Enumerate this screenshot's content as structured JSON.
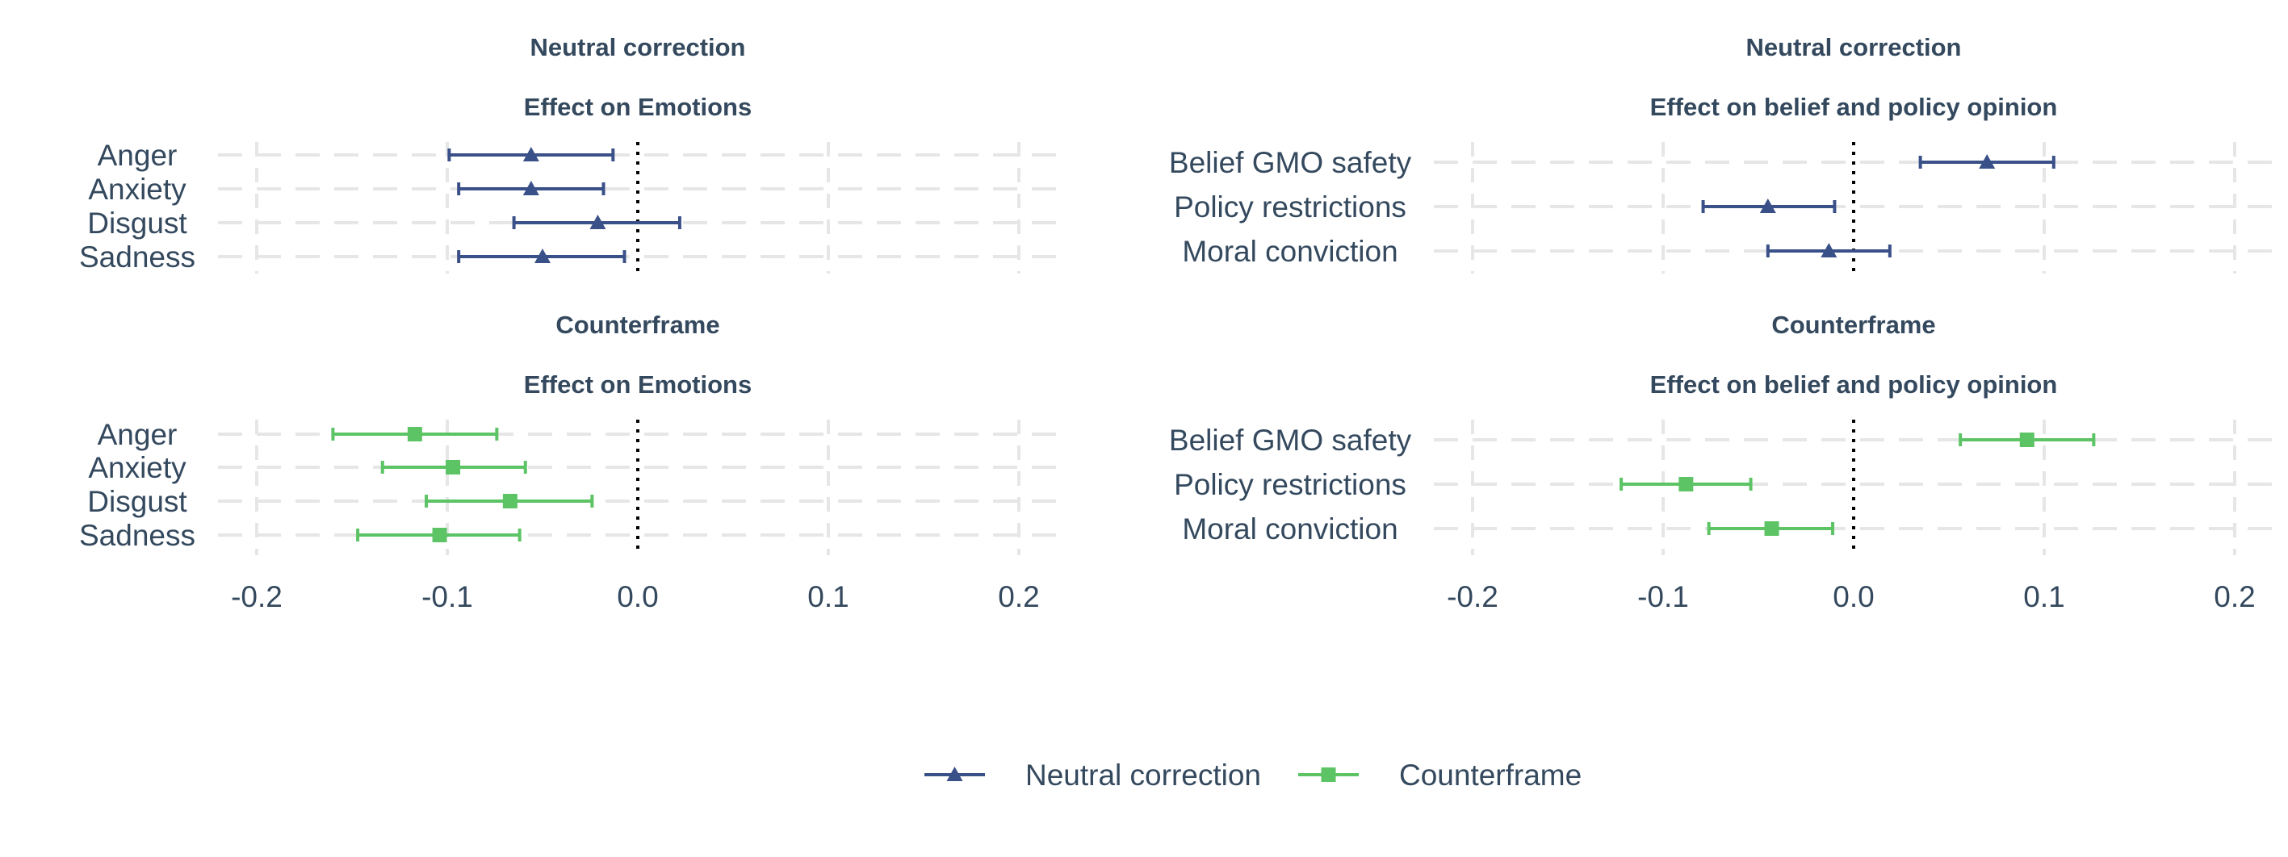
{
  "colors": {
    "neutral": "#3a5088",
    "counterframe": "#5cc464",
    "text": "#34495e",
    "grid": "#e6e6e6",
    "zero_line": "#000000"
  },
  "legend": {
    "position": "bottom",
    "items": [
      {
        "label": "Neutral correction",
        "marker": "triangle",
        "color_key": "neutral"
      },
      {
        "label": "Counterframe",
        "marker": "square",
        "color_key": "counterframe"
      }
    ]
  },
  "chart_data": [
    {
      "type": "forest",
      "title": "Neutral correction",
      "subtitle": "Effect on Emotions",
      "series_name": "Neutral correction",
      "marker": "triangle",
      "color_key": "neutral",
      "xlim": [
        -0.22,
        0.22
      ],
      "x_ticks": [
        -0.2,
        -0.1,
        0.0,
        0.1,
        0.2
      ],
      "reference_line": 0,
      "grid": true,
      "categories": [
        "Anger",
        "Anxiety",
        "Disgust",
        "Sadness"
      ],
      "estimates": [
        -0.056,
        -0.056,
        -0.021,
        -0.05
      ],
      "ci_low": [
        -0.099,
        -0.094,
        -0.065,
        -0.094
      ],
      "ci_high": [
        -0.013,
        -0.018,
        0.022,
        -0.007
      ]
    },
    {
      "type": "forest",
      "title": "Neutral correction",
      "subtitle": "Effect on belief and policy opinion",
      "series_name": "Neutral correction",
      "marker": "triangle",
      "color_key": "neutral",
      "xlim": [
        -0.22,
        0.22
      ],
      "x_ticks": [
        -0.2,
        -0.1,
        0.0,
        0.1,
        0.2
      ],
      "reference_line": 0,
      "grid": true,
      "categories": [
        "Belief GMO safety",
        "Policy restrictions",
        "Moral conviction"
      ],
      "estimates": [
        0.07,
        -0.045,
        -0.013
      ],
      "ci_low": [
        0.035,
        -0.079,
        -0.045
      ],
      "ci_high": [
        0.105,
        -0.01,
        0.019
      ]
    },
    {
      "type": "forest",
      "title": "Counterframe",
      "subtitle": "Effect on Emotions",
      "series_name": "Counterframe",
      "marker": "square",
      "color_key": "counterframe",
      "xlim": [
        -0.22,
        0.22
      ],
      "x_ticks": [
        -0.2,
        -0.1,
        0.0,
        0.1,
        0.2
      ],
      "reference_line": 0,
      "grid": true,
      "categories": [
        "Anger",
        "Anxiety",
        "Disgust",
        "Sadness"
      ],
      "estimates": [
        -0.117,
        -0.097,
        -0.067,
        -0.104
      ],
      "ci_low": [
        -0.16,
        -0.134,
        -0.111,
        -0.147
      ],
      "ci_high": [
        -0.074,
        -0.059,
        -0.024,
        -0.062
      ]
    },
    {
      "type": "forest",
      "title": "Counterframe",
      "subtitle": "Effect on belief and policy opinion",
      "series_name": "Counterframe",
      "marker": "square",
      "color_key": "counterframe",
      "xlim": [
        -0.22,
        0.22
      ],
      "x_ticks": [
        -0.2,
        -0.1,
        0.0,
        0.1,
        0.2
      ],
      "reference_line": 0,
      "grid": true,
      "categories": [
        "Belief GMO safety",
        "Policy restrictions",
        "Moral conviction"
      ],
      "estimates": [
        0.091,
        -0.088,
        -0.043
      ],
      "ci_low": [
        0.056,
        -0.122,
        -0.076
      ],
      "ci_high": [
        0.126,
        -0.054,
        -0.011
      ]
    }
  ]
}
